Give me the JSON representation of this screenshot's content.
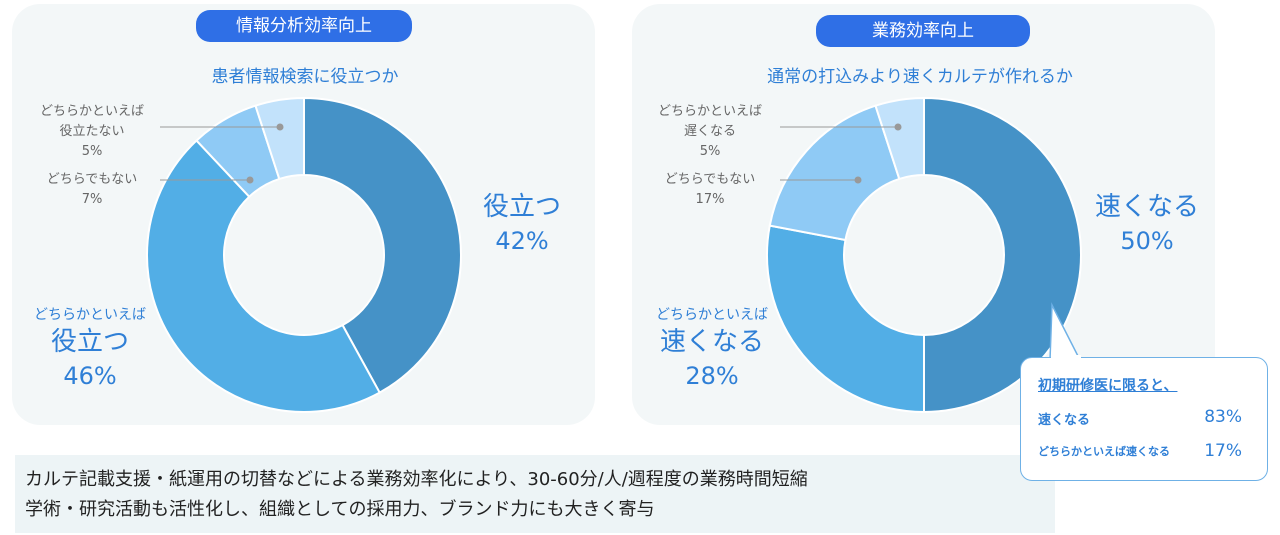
{
  "chart_data": [
    {
      "type": "pie",
      "title": "情報分析効率向上",
      "subtitle": "患者情報検索に役立つか",
      "slices": [
        {
          "label": "役立つ",
          "value": 42,
          "value_label": "42%",
          "color": "#4592c7"
        },
        {
          "label_top": "どちらかといえば",
          "label": "役立つ",
          "value": 46,
          "value_label": "46%",
          "color": "#52aee6"
        },
        {
          "label": "どちらでもない",
          "value": 7,
          "value_label": "7%",
          "color": "#8fcaf5"
        },
        {
          "label_top": "どちらかといえば",
          "label": "役立たない",
          "value": 5,
          "value_label": "5%",
          "color": "#c2e2fb"
        }
      ]
    },
    {
      "type": "pie",
      "title": "業務効率向上",
      "subtitle": "通常の打込みより速くカルテが作れるか",
      "slices": [
        {
          "label": "速くなる",
          "value": 50,
          "value_label": "50%",
          "color": "#4592c7"
        },
        {
          "label_top": "どちらかといえば",
          "label": "速くなる",
          "value": 28,
          "value_label": "28%",
          "color": "#52aee6"
        },
        {
          "label": "どちらでもない",
          "value": 17,
          "value_label": "17%",
          "color": "#8fcaf5"
        },
        {
          "label_top": "どちらかといえば",
          "label": "遅くなる",
          "value": 5,
          "value_label": "5%",
          "color": "#c2e2fb"
        }
      ]
    }
  ],
  "callout": {
    "title": "初期研修医に限ると、",
    "rows": [
      {
        "label": "速くなる",
        "value": "83%"
      },
      {
        "label": "どちらかといえば速くなる",
        "value": "17%"
      }
    ]
  },
  "summary": [
    "カルテ記載支援・紙運用の切替などによる業務効率化により、30-60分/人/週程度の業務時間短縮",
    "学術・研究活動も活性化し、組織としての採用力、ブランド力にも大きく寄与"
  ]
}
